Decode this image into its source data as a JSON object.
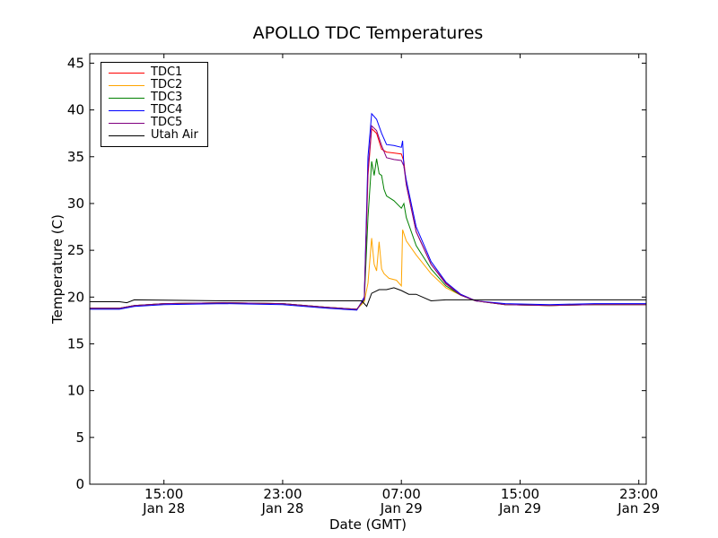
{
  "chart_data": {
    "type": "line",
    "title": "APOLLO TDC Temperatures",
    "xlabel": "Date (GMT)",
    "ylabel": "Temperature (C)",
    "ylim": [
      0,
      46
    ],
    "y_ticks": [
      0,
      5,
      10,
      15,
      20,
      25,
      30,
      35,
      40,
      45
    ],
    "xlim": [
      "2014-01-28 10:00",
      "2014-01-29 23:30"
    ],
    "x_ticks": [
      {
        "time": "Jan 28 15:00",
        "line1": "15:00",
        "line2": "Jan 28"
      },
      {
        "time": "Jan 28 23:00",
        "line1": "23:00",
        "line2": "Jan 28"
      },
      {
        "time": "Jan 29 07:00",
        "line1": "07:00",
        "line2": "Jan 29"
      },
      {
        "time": "Jan 29 15:00",
        "line1": "15:00",
        "line2": "Jan 29"
      },
      {
        "time": "Jan 29 23:00",
        "line1": "23:00",
        "line2": "Jan 29"
      }
    ],
    "legend_position": "top-left",
    "grid": false,
    "series": [
      {
        "name": "TDC1",
        "color": "#ff0000",
        "points": [
          [
            "Jan 28 10:00",
            18.8
          ],
          [
            "Jan 28 12:00",
            18.8
          ],
          [
            "Jan 28 13:00",
            19.1
          ],
          [
            "Jan 28 15:00",
            19.3
          ],
          [
            "Jan 28 19:00",
            19.4
          ],
          [
            "Jan 28 23:00",
            19.3
          ],
          [
            "Jan 29 02:00",
            18.9
          ],
          [
            "Jan 29 04:00",
            18.7
          ],
          [
            "Jan 29 04:30",
            19.8
          ],
          [
            "Jan 29 04:45",
            33.0
          ],
          [
            "Jan 29 05:00",
            38.0
          ],
          [
            "Jan 29 05:20",
            37.5
          ],
          [
            "Jan 29 05:40",
            35.8
          ],
          [
            "Jan 29 06:00",
            35.5
          ],
          [
            "Jan 29 06:30",
            35.4
          ],
          [
            "Jan 29 07:00",
            35.3
          ],
          [
            "Jan 29 07:10",
            34.5
          ],
          [
            "Jan 29 07:20",
            32.0
          ],
          [
            "Jan 29 08:00",
            27.0
          ],
          [
            "Jan 29 09:00",
            23.5
          ],
          [
            "Jan 29 10:00",
            21.5
          ],
          [
            "Jan 29 11:00",
            20.3
          ],
          [
            "Jan 29 12:00",
            19.6
          ],
          [
            "Jan 29 14:00",
            19.2
          ],
          [
            "Jan 29 17:00",
            19.1
          ],
          [
            "Jan 29 20:00",
            19.2
          ],
          [
            "Jan 29 23:30",
            19.2
          ]
        ]
      },
      {
        "name": "TDC2",
        "color": "#ffa500",
        "points": [
          [
            "Jan 28 10:00",
            18.8
          ],
          [
            "Jan 28 12:00",
            18.8
          ],
          [
            "Jan 28 13:00",
            19.1
          ],
          [
            "Jan 28 15:00",
            19.3
          ],
          [
            "Jan 28 19:00",
            19.4
          ],
          [
            "Jan 28 23:00",
            19.3
          ],
          [
            "Jan 29 02:00",
            18.9
          ],
          [
            "Jan 29 04:00",
            18.7
          ],
          [
            "Jan 29 04:30",
            19.5
          ],
          [
            "Jan 29 04:45",
            21.5
          ],
          [
            "Jan 29 05:00",
            26.3
          ],
          [
            "Jan 29 05:10",
            23.5
          ],
          [
            "Jan 29 05:20",
            22.8
          ],
          [
            "Jan 29 05:30",
            25.9
          ],
          [
            "Jan 29 05:40",
            23.0
          ],
          [
            "Jan 29 05:50",
            22.5
          ],
          [
            "Jan 29 06:10",
            22.0
          ],
          [
            "Jan 29 06:40",
            21.8
          ],
          [
            "Jan 29 07:00",
            21.2
          ],
          [
            "Jan 29 07:05",
            27.2
          ],
          [
            "Jan 29 07:20",
            26.0
          ],
          [
            "Jan 29 08:00",
            24.5
          ],
          [
            "Jan 29 09:00",
            22.5
          ],
          [
            "Jan 29 10:00",
            21.0
          ],
          [
            "Jan 29 11:00",
            20.2
          ],
          [
            "Jan 29 12:00",
            19.6
          ],
          [
            "Jan 29 14:00",
            19.2
          ],
          [
            "Jan 29 17:00",
            19.1
          ],
          [
            "Jan 29 20:00",
            19.2
          ],
          [
            "Jan 29 23:30",
            19.2
          ]
        ]
      },
      {
        "name": "TDC3",
        "color": "#008000",
        "points": [
          [
            "Jan 28 10:00",
            18.8
          ],
          [
            "Jan 28 12:00",
            18.8
          ],
          [
            "Jan 28 13:00",
            19.1
          ],
          [
            "Jan 28 15:00",
            19.3
          ],
          [
            "Jan 28 19:00",
            19.4
          ],
          [
            "Jan 28 23:00",
            19.3
          ],
          [
            "Jan 29 02:00",
            18.9
          ],
          [
            "Jan 29 04:00",
            18.7
          ],
          [
            "Jan 29 04:30",
            19.7
          ],
          [
            "Jan 29 04:45",
            28.5
          ],
          [
            "Jan 29 05:00",
            34.5
          ],
          [
            "Jan 29 05:10",
            33.0
          ],
          [
            "Jan 29 05:20",
            34.8
          ],
          [
            "Jan 29 05:30",
            33.2
          ],
          [
            "Jan 29 05:40",
            33.0
          ],
          [
            "Jan 29 05:50",
            31.5
          ],
          [
            "Jan 29 06:00",
            30.8
          ],
          [
            "Jan 29 06:30",
            30.3
          ],
          [
            "Jan 29 07:00",
            29.5
          ],
          [
            "Jan 29 07:10",
            30.0
          ],
          [
            "Jan 29 07:20",
            28.5
          ],
          [
            "Jan 29 08:00",
            25.5
          ],
          [
            "Jan 29 09:00",
            23.0
          ],
          [
            "Jan 29 10:00",
            21.2
          ],
          [
            "Jan 29 11:00",
            20.2
          ],
          [
            "Jan 29 12:00",
            19.6
          ],
          [
            "Jan 29 14:00",
            19.2
          ],
          [
            "Jan 29 17:00",
            19.1
          ],
          [
            "Jan 29 20:00",
            19.2
          ],
          [
            "Jan 29 23:30",
            19.2
          ]
        ]
      },
      {
        "name": "TDC4",
        "color": "#0000ff",
        "points": [
          [
            "Jan 28 10:00",
            18.7
          ],
          [
            "Jan 28 12:00",
            18.7
          ],
          [
            "Jan 28 13:00",
            19.0
          ],
          [
            "Jan 28 15:00",
            19.2
          ],
          [
            "Jan 28 19:00",
            19.3
          ],
          [
            "Jan 28 23:00",
            19.2
          ],
          [
            "Jan 29 02:00",
            18.8
          ],
          [
            "Jan 29 04:00",
            18.6
          ],
          [
            "Jan 29 04:30",
            20.0
          ],
          [
            "Jan 29 04:45",
            35.0
          ],
          [
            "Jan 29 05:00",
            39.6
          ],
          [
            "Jan 29 05:20",
            39.0
          ],
          [
            "Jan 29 05:40",
            37.5
          ],
          [
            "Jan 29 06:00",
            36.3
          ],
          [
            "Jan 29 06:30",
            36.2
          ],
          [
            "Jan 29 07:00",
            36.0
          ],
          [
            "Jan 29 07:05",
            36.7
          ],
          [
            "Jan 29 07:10",
            34.0
          ],
          [
            "Jan 29 07:20",
            32.5
          ],
          [
            "Jan 29 08:00",
            27.5
          ],
          [
            "Jan 29 09:00",
            23.8
          ],
          [
            "Jan 29 10:00",
            21.6
          ],
          [
            "Jan 29 11:00",
            20.3
          ],
          [
            "Jan 29 12:00",
            19.6
          ],
          [
            "Jan 29 14:00",
            19.3
          ],
          [
            "Jan 29 17:00",
            19.2
          ],
          [
            "Jan 29 20:00",
            19.3
          ],
          [
            "Jan 29 23:30",
            19.3
          ]
        ]
      },
      {
        "name": "TDC5",
        "color": "#800080",
        "points": [
          [
            "Jan 28 10:00",
            18.8
          ],
          [
            "Jan 28 12:00",
            18.8
          ],
          [
            "Jan 28 13:00",
            19.1
          ],
          [
            "Jan 28 15:00",
            19.3
          ],
          [
            "Jan 28 19:00",
            19.4
          ],
          [
            "Jan 28 23:00",
            19.3
          ],
          [
            "Jan 29 02:00",
            18.9
          ],
          [
            "Jan 29 04:00",
            18.7
          ],
          [
            "Jan 29 04:30",
            19.8
          ],
          [
            "Jan 29 04:45",
            33.5
          ],
          [
            "Jan 29 05:00",
            38.3
          ],
          [
            "Jan 29 05:20",
            37.8
          ],
          [
            "Jan 29 05:40",
            36.2
          ],
          [
            "Jan 29 06:00",
            34.9
          ],
          [
            "Jan 29 06:30",
            34.7
          ],
          [
            "Jan 29 07:00",
            34.6
          ],
          [
            "Jan 29 07:10",
            34.0
          ],
          [
            "Jan 29 07:20",
            32.0
          ],
          [
            "Jan 29 08:00",
            27.0
          ],
          [
            "Jan 29 09:00",
            23.5
          ],
          [
            "Jan 29 10:00",
            21.4
          ],
          [
            "Jan 29 11:00",
            20.2
          ],
          [
            "Jan 29 12:00",
            19.6
          ],
          [
            "Jan 29 14:00",
            19.2
          ],
          [
            "Jan 29 17:00",
            19.1
          ],
          [
            "Jan 29 20:00",
            19.2
          ],
          [
            "Jan 29 23:30",
            19.2
          ]
        ]
      },
      {
        "name": "Utah Air",
        "color": "#000000",
        "points": [
          [
            "Jan 28 10:00",
            19.5
          ],
          [
            "Jan 28 12:00",
            19.5
          ],
          [
            "Jan 28 12:30",
            19.4
          ],
          [
            "Jan 28 13:00",
            19.7
          ],
          [
            "Jan 28 19:00",
            19.6
          ],
          [
            "Jan 28 23:00",
            19.6
          ],
          [
            "Jan 29 02:00",
            19.6
          ],
          [
            "Jan 29 04:20",
            19.6
          ],
          [
            "Jan 29 04:40",
            19.0
          ],
          [
            "Jan 29 05:00",
            20.4
          ],
          [
            "Jan 29 05:30",
            20.8
          ],
          [
            "Jan 29 06:00",
            20.8
          ],
          [
            "Jan 29 06:30",
            21.0
          ],
          [
            "Jan 29 07:00",
            20.7
          ],
          [
            "Jan 29 07:30",
            20.3
          ],
          [
            "Jan 29 08:00",
            20.3
          ],
          [
            "Jan 29 09:00",
            19.6
          ],
          [
            "Jan 29 10:00",
            19.7
          ],
          [
            "Jan 29 15:00",
            19.7
          ],
          [
            "Jan 29 20:00",
            19.7
          ],
          [
            "Jan 29 23:30",
            19.7
          ]
        ]
      }
    ]
  }
}
